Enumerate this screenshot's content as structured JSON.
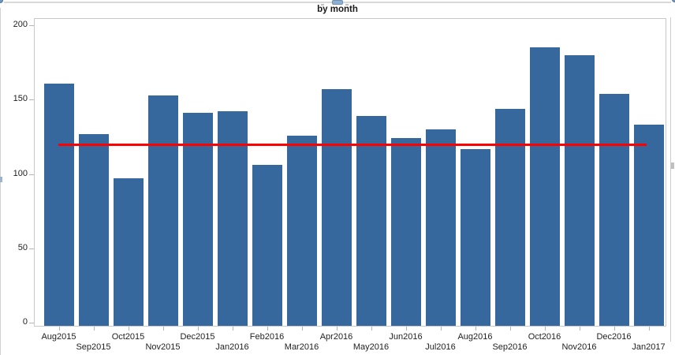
{
  "window": {
    "title": "by month"
  },
  "chart_data": {
    "type": "bar",
    "title": "by month",
    "categories": [
      "Aug2015",
      "Sep2015",
      "Oct2015",
      "Nov2015",
      "Dec2015",
      "Jan2016",
      "Feb2016",
      "Mar2016",
      "Apr2016",
      "May2016",
      "Jun2016",
      "Jul2016",
      "Aug2016",
      "Sep2016",
      "Oct2016",
      "Nov2016",
      "Dec2016",
      "Jan2017"
    ],
    "values": [
      161,
      127,
      97,
      153,
      141,
      142,
      106,
      126,
      157,
      139,
      124,
      130,
      117,
      144,
      185,
      180,
      154,
      133
    ],
    "xlabel": "",
    "ylabel": "",
    "ylim": [
      0,
      200
    ],
    "yticks": [
      0,
      50,
      100,
      150,
      200
    ],
    "grid": "off",
    "legend": "none",
    "label_layout": "staggered-two-rows",
    "ref_line": {
      "value": 120,
      "color": "#FF0000"
    },
    "bar_color": "#36689D",
    "axis_color": "#C9C9C9",
    "text_color": "#1F1F1F"
  }
}
